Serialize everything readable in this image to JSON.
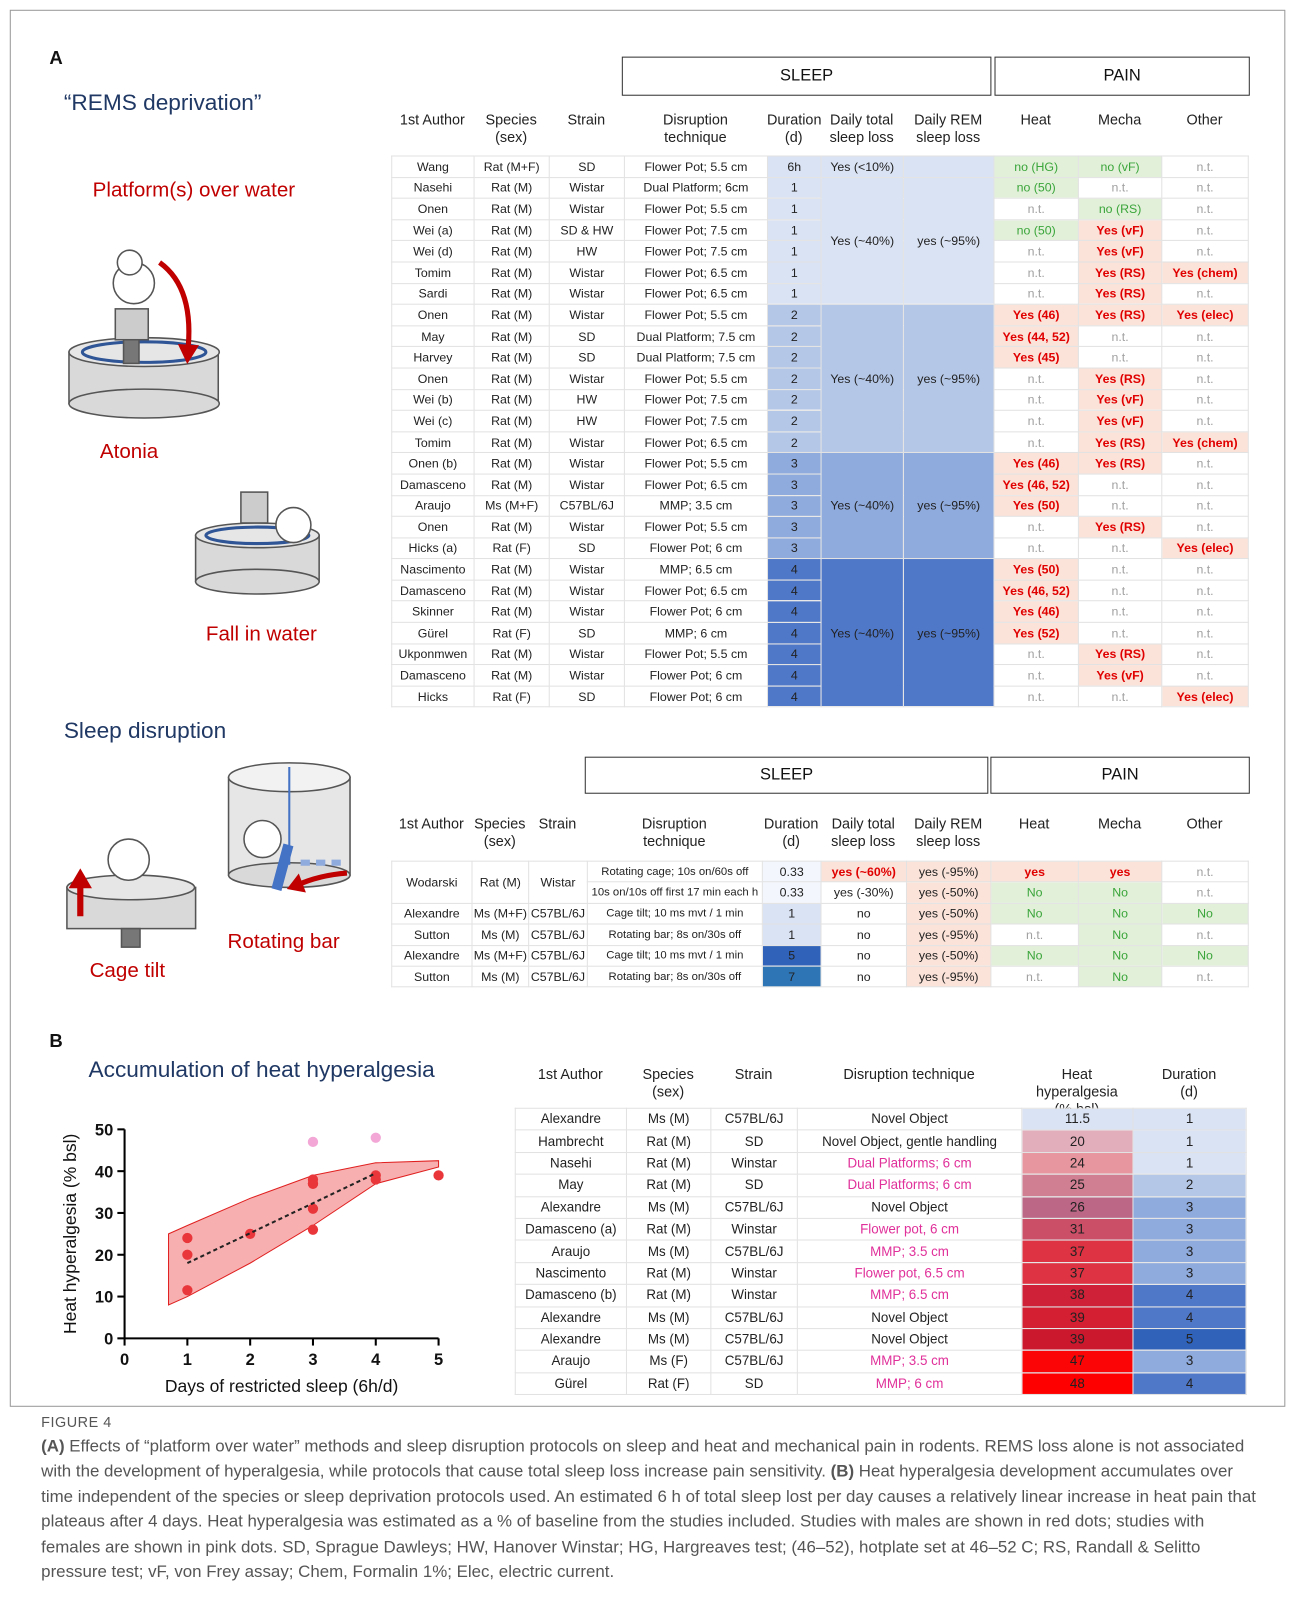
{
  "panel_a": {
    "label": "A",
    "heading": "“REMS deprivation”",
    "labels": [
      "Platform(s) over water",
      "Atonia",
      "Fall in water"
    ],
    "table": {
      "group_headers": [
        "SLEEP",
        "PAIN"
      ],
      "columns": [
        "1st Author",
        "Species\n(sex)",
        "Strain",
        "Disruption\ntechnique",
        "Duration\n(d)",
        "Daily total\nsleep loss",
        "Daily REM\nsleep loss",
        "Heat",
        "Mecha",
        "Other"
      ],
      "groups": [
        {
          "total_loss": "Yes (<10%)",
          "rows": [
            [
              "Wang",
              "Rat (M+F)",
              "SD",
              "Flower Pot; 5.5 cm",
              "6h",
              "no (HG)",
              "no (vF)",
              "n.t."
            ]
          ]
        },
        {
          "total_loss": "Yes (~40%)",
          "rem_loss": "yes (~95%)",
          "rows": [
            [
              "Nasehi",
              "Rat (M)",
              "Wistar",
              "Dual Platform; 6cm",
              1,
              "no (50)",
              "n.t.",
              "n.t."
            ],
            [
              "Onen",
              "Rat (M)",
              "Wistar",
              "Flower Pot; 5.5 cm",
              1,
              "n.t.",
              "no (RS)",
              "n.t."
            ],
            [
              "Wei (a)",
              "Rat (M)",
              "SD & HW",
              "Flower Pot; 7.5 cm",
              1,
              "no (50)",
              "Yes (vF)",
              "n.t."
            ],
            [
              "Wei (d)",
              "Rat (M)",
              "HW",
              "Flower Pot; 7.5 cm",
              1,
              "n.t.",
              "Yes (vF)",
              "n.t."
            ],
            [
              "Tomim",
              "Rat (M)",
              "Wistar",
              "Flower Pot; 6.5 cm",
              1,
              "n.t.",
              "Yes (RS)",
              "Yes (chem)"
            ],
            [
              "Sardi",
              "Rat (M)",
              "Wistar",
              "Flower Pot; 6.5 cm",
              1,
              "n.t.",
              "Yes (RS)",
              "n.t."
            ]
          ]
        },
        {
          "total_loss": "Yes (~40%)",
          "rem_loss": "yes (~95%)",
          "rows": [
            [
              "Onen",
              "Rat (M)",
              "Wistar",
              "Flower Pot; 5.5 cm",
              2,
              "Yes (46)",
              "Yes (RS)",
              "Yes (elec)"
            ],
            [
              "May",
              "Rat (M)",
              "SD",
              "Dual Platform; 7.5 cm",
              2,
              "Yes (44, 52)",
              "n.t.",
              "n.t."
            ],
            [
              "Harvey",
              "Rat (M)",
              "SD",
              "Dual Platform; 7.5 cm",
              2,
              "Yes (45)",
              "n.t.",
              "n.t."
            ],
            [
              "Onen",
              "Rat (M)",
              "Wistar",
              "Flower Pot; 5.5 cm",
              2,
              "n.t.",
              "Yes (RS)",
              "n.t."
            ],
            [
              "Wei (b)",
              "Rat (M)",
              "HW",
              "Flower Pot; 7.5 cm",
              2,
              "n.t.",
              "Yes (vF)",
              "n.t."
            ],
            [
              "Wei (c)",
              "Rat (M)",
              "HW",
              "Flower Pot; 7.5 cm",
              2,
              "n.t.",
              "Yes (vF)",
              "n.t."
            ],
            [
              "Tomim",
              "Rat (M)",
              "Wistar",
              "Flower Pot; 6.5 cm",
              2,
              "n.t.",
              "Yes (RS)",
              "Yes (chem)"
            ]
          ]
        },
        {
          "total_loss": "Yes (~40%)",
          "rem_loss": "yes (~95%)",
          "rows": [
            [
              "Onen (b)",
              "Rat (M)",
              "Wistar",
              "Flower Pot; 5.5 cm",
              3,
              "Yes (46)",
              "Yes (RS)",
              "n.t."
            ],
            [
              "Damasceno",
              "Rat (M)",
              "Wistar",
              "Flower Pot; 6.5 cm",
              3,
              "Yes (46, 52)",
              "n.t.",
              "n.t."
            ],
            [
              "Araujo",
              "Ms (M+F)",
              "C57BL/6J",
              "MMP; 3.5 cm",
              3,
              "Yes (50)",
              "n.t.",
              "n.t."
            ],
            [
              "Onen",
              "Rat (M)",
              "Wistar",
              "Flower Pot; 5.5 cm",
              3,
              "n.t.",
              "Yes (RS)",
              "n.t."
            ],
            [
              "Hicks (a)",
              "Rat (F)",
              "SD",
              "Flower Pot; 6 cm",
              3,
              "n.t.",
              "n.t.",
              "Yes (elec)"
            ]
          ]
        },
        {
          "total_loss": "Yes (~40%)",
          "rem_loss": "yes (~95%)",
          "rows": [
            [
              "Nascimento",
              "Rat (M)",
              "Wistar",
              "MMP; 6.5 cm",
              4,
              "Yes (50)",
              "n.t.",
              "n.t."
            ],
            [
              "Damasceno",
              "Rat (M)",
              "Wistar",
              "Flower Pot; 6.5 cm",
              4,
              "Yes (46, 52)",
              "n.t.",
              "n.t."
            ],
            [
              "Skinner",
              "Rat (M)",
              "Wistar",
              "Flower Pot; 6 cm",
              4,
              "Yes (46)",
              "n.t.",
              "n.t."
            ],
            [
              "Gürel",
              "Rat (F)",
              "SD",
              "MMP; 6 cm",
              4,
              "Yes (52)",
              "n.t.",
              "n.t."
            ],
            [
              "Ukponmwen",
              "Rat (M)",
              "Wistar",
              "Flower Pot; 5.5 cm",
              4,
              "n.t.",
              "Yes (RS)",
              "n.t."
            ],
            [
              "Damasceno",
              "Rat (M)",
              "Wistar",
              "Flower Pot; 6 cm",
              4,
              "n.t.",
              "Yes (vF)",
              "n.t."
            ],
            [
              "Hicks",
              "Rat (F)",
              "SD",
              "Flower Pot; 6 cm",
              4,
              "n.t.",
              "n.t.",
              "Yes (elec)"
            ]
          ]
        }
      ]
    },
    "sleep_disruption": {
      "heading": "Sleep disruption",
      "labels": [
        "Cage tilt",
        "Rotating bar"
      ],
      "table": {
        "group_headers": [
          "SLEEP",
          "PAIN"
        ],
        "columns": [
          "1st Author",
          "Species\n(sex)",
          "Strain",
          "Disruption\ntechnique",
          "Duration\n(d)",
          "Daily total\nsleep loss",
          "Daily REM\nsleep loss",
          "Heat",
          "Mecha",
          "Other"
        ],
        "rows": [
          {
            "author": "Wodarski",
            "species": "Rat (M)",
            "strain": "Wistar",
            "protocols": [
              [
                "Rotating cage; 10s on/60s off",
                0.33,
                "yes (~60%)",
                "yes (-95%)",
                "yes",
                "yes",
                "n.t."
              ],
              [
                "10s on/10s off first 17 min each h",
                0.33,
                "yes (-30%)",
                "yes (-50%)",
                "No",
                "No",
                "n.t."
              ]
            ]
          },
          {
            "author": "Alexandre",
            "species": "Ms (M+F)",
            "strain": "C57BL/6J",
            "protocols": [
              [
                "Cage tilt; 10 ms mvt / 1 min",
                1,
                "no",
                "yes (-50%)",
                "No",
                "No",
                "No"
              ]
            ]
          },
          {
            "author": "Sutton",
            "species": "Ms (M)",
            "strain": "C57BL/6J",
            "protocols": [
              [
                "Rotating bar; 8s on/30s off",
                1,
                "no",
                "yes (-95%)",
                "n.t.",
                "No",
                "n.t."
              ]
            ]
          },
          {
            "author": "Alexandre",
            "species": "Ms (M+F)",
            "strain": "C57BL/6J",
            "protocols": [
              [
                "Cage tilt; 10 ms mvt / 1 min",
                5,
                "no",
                "yes (-50%)",
                "No",
                "No",
                "No"
              ]
            ]
          },
          {
            "author": "Sutton",
            "species": "Ms (M)",
            "strain": "C57BL/6J",
            "protocols": [
              [
                "Rotating bar; 8s on/30s off",
                7,
                "no",
                "yes (-95%)",
                "n.t.",
                "No",
                "n.t."
              ]
            ]
          }
        ]
      }
    }
  },
  "panel_b": {
    "label": "B",
    "table": {
      "columns": [
        "1st Author",
        "Species\n(sex)",
        "Strain",
        "Disruption technique",
        "Heat hyperalgesia\n(% bsl)",
        "Duration\n(d)"
      ],
      "rows": [
        {
          "cells": [
            "Alexandre",
            "Ms (M)",
            "C57BL/6J",
            "Novel Object",
            11.5,
            1
          ]
        },
        {
          "cells": [
            "Hambrecht",
            "Rat (M)",
            "SD",
            "Novel Object, gentle handling",
            20,
            1
          ]
        },
        {
          "cells": [
            "Nasehi",
            "Rat (M)",
            "Winstar",
            "Dual Platforms; 6 cm",
            24,
            1
          ],
          "technique_color": "#e0309a"
        },
        {
          "cells": [
            "May",
            "Rat (M)",
            "SD",
            "Dual Platforms; 6 cm",
            25,
            2
          ],
          "technique_color": "#e0309a"
        },
        {
          "cells": [
            "Alexandre",
            "Ms (M)",
            "C57BL/6J",
            "Novel Object",
            26,
            3
          ]
        },
        {
          "cells": [
            "Damasceno (a)",
            "Rat (M)",
            "Winstar",
            "Flower pot, 6 cm",
            31,
            3
          ],
          "technique_color": "#e0309a"
        },
        {
          "cells": [
            "Araujo",
            "Ms (M)",
            "C57BL/6J",
            "MMP; 3.5 cm",
            37,
            3
          ],
          "technique_color": "#e0309a"
        },
        {
          "cells": [
            "Nascimento",
            "Rat (M)",
            "Winstar",
            "Flower pot, 6.5 cm",
            37,
            3
          ],
          "technique_color": "#e0309a"
        },
        {
          "cells": [
            "Damasceno (b)",
            "Rat (M)",
            "Winstar",
            "MMP; 6.5 cm",
            38,
            4
          ],
          "technique_color": "#e0309a"
        },
        {
          "cells": [
            "Alexandre",
            "Ms (M)",
            "C57BL/6J",
            "Novel Object",
            39,
            4
          ]
        },
        {
          "cells": [
            "Alexandre",
            "Ms (M)",
            "C57BL/6J",
            "Novel Object",
            39,
            5
          ]
        },
        {
          "cells": [
            "Araujo",
            "Ms (F)",
            "C57BL/6J",
            "MMP; 3.5 cm",
            47,
            3
          ],
          "technique_color": "#e0309a"
        },
        {
          "cells": [
            "Gürel",
            "Rat (F)",
            "SD",
            "MMP; 6 cm",
            48,
            4
          ],
          "technique_color": "#e0309a"
        }
      ]
    }
  },
  "chart_data": {
    "type": "scatter",
    "title": "Accumulation of heat hyperalgesia",
    "xlabel": "Days of restricted sleep (6h/d)",
    "ylabel": "Heat hyperalgesia (% bsl)",
    "xlim": [
      0,
      5
    ],
    "xticks": [
      0,
      1,
      2,
      3,
      4,
      5
    ],
    "ylim": [
      0,
      50
    ],
    "yticks": [
      0,
      10,
      20,
      30,
      40,
      50
    ],
    "series": [
      {
        "color": "#e8363b",
        "x": [
          1,
          1,
          1,
          2,
          3,
          3,
          3,
          3,
          3,
          4,
          4,
          5
        ],
        "values": [
          11.5,
          20,
          24,
          25,
          26,
          31,
          37,
          37,
          38,
          38,
          39,
          39
        ]
      },
      {
        "color": "#f2a7d6",
        "x": [
          3,
          4
        ],
        "values": [
          47,
          48
        ]
      }
    ],
    "fit": {
      "color": "#222222",
      "x": [
        1,
        4
      ],
      "values": [
        18,
        39.5
      ]
    },
    "band": {
      "color": "#f26d6d",
      "x": [
        0.7,
        1,
        2,
        3,
        4,
        5
      ],
      "lower": [
        8,
        10,
        18,
        27,
        37,
        41
      ],
      "upper": [
        25,
        27,
        33.5,
        39,
        42,
        42.5
      ]
    }
  },
  "caption": {
    "label": "FIGURE 4",
    "parts": [
      {
        "bold": "(A)",
        "text": " Effects of “platform over water” methods and sleep disruption protocols on sleep and heat and mechanical pain in rodents. REMS loss alone is not associated with the development of hyperalgesia, while protocols that cause total sleep loss increase pain sensitivity. "
      },
      {
        "bold": "(B)",
        "text": " Heat hyperalgesia development accumulates over time independent of the species or sleep deprivation protocols used. An estimated 6 h of total sleep lost per day causes a relatively linear increase in heat pain that plateaus after 4 days. Heat hyperalgesia was estimated as a % of baseline from the studies included. Studies with males are shown in red dots; studies with females are shown in pink dots. SD, Sprague Dawleys; HW, Hanover Winstar; HG, Hargreaves test; (46–52), hotplate set at 46–52 C; RS, Randall & Selitto pressure test; vF, von Frey assay; Chem, Formalin 1%; Elec, electric current."
      }
    ]
  }
}
